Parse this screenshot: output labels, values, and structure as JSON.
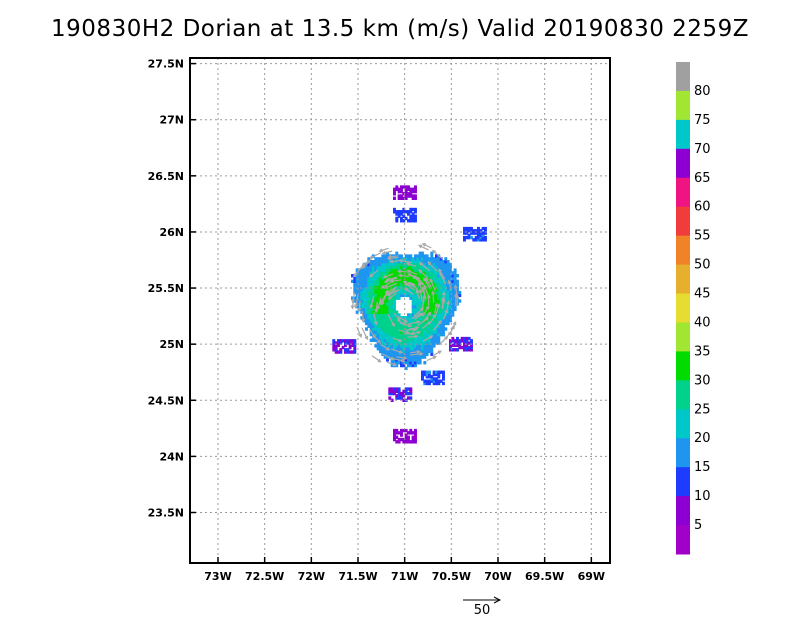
{
  "title": "190830H2 Dorian at 13.5 km (m/s) Valid 20190830 2259Z",
  "chart_data": {
    "type": "heatmap",
    "title": "190830H2 Dorian at 13.5 km (m/s) Valid 20190830 2259Z",
    "xlim": [
      -73.3,
      -68.8
    ],
    "ylim": [
      23.05,
      27.55
    ],
    "x_ticks": [
      {
        "value": -73.0,
        "label": "73W"
      },
      {
        "value": -72.5,
        "label": "72.5W"
      },
      {
        "value": -72.0,
        "label": "72W"
      },
      {
        "value": -71.5,
        "label": "71.5W"
      },
      {
        "value": -71.0,
        "label": "71W"
      },
      {
        "value": -70.5,
        "label": "70.5W"
      },
      {
        "value": -70.0,
        "label": "70W"
      },
      {
        "value": -69.5,
        "label": "69.5W"
      },
      {
        "value": -69.0,
        "label": "69W"
      }
    ],
    "y_ticks": [
      {
        "value": 27.5,
        "label": "27.5N"
      },
      {
        "value": 27.0,
        "label": "27N"
      },
      {
        "value": 26.5,
        "label": "26.5N"
      },
      {
        "value": 26.0,
        "label": "26N"
      },
      {
        "value": 25.5,
        "label": "25.5N"
      },
      {
        "value": 25.0,
        "label": "25N"
      },
      {
        "value": 24.5,
        "label": "24.5N"
      },
      {
        "value": 24.0,
        "label": "24N"
      },
      {
        "value": 23.5,
        "label": "23.5N"
      }
    ],
    "grid": true,
    "colorbar": {
      "labels": [
        "80",
        "75",
        "70",
        "65",
        "60",
        "55",
        "50",
        "45",
        "40",
        "35",
        "30",
        "25",
        "20",
        "15",
        "10",
        "5"
      ],
      "colors": [
        "#a0a0a0",
        "#a0e632",
        "#00c8c8",
        "#8c00d2",
        "#f01482",
        "#f03c3c",
        "#f08228",
        "#e6af2d",
        "#e6dc32",
        "#a0e632",
        "#00dc00",
        "#00d28c",
        "#00c8c8",
        "#1e96f0",
        "#1e3cff",
        "#8c00d2",
        "#a000c8"
      ]
    },
    "storm": {
      "center_lon": -71.0,
      "center_lat": 25.35,
      "eye_lon": -71.02,
      "eye_lat": 25.33,
      "max_wind": 32,
      "features": [
        {
          "type": "patch",
          "lon": -71.0,
          "lat": 26.35,
          "value": 8
        },
        {
          "type": "patch",
          "lon": -71.0,
          "lat": 26.15,
          "value": 12
        },
        {
          "type": "patch",
          "lon": -70.25,
          "lat": 25.98,
          "value": 14
        },
        {
          "type": "patch",
          "lon": -70.4,
          "lat": 25.0,
          "value": 10
        },
        {
          "type": "patch",
          "lon": -71.65,
          "lat": 24.98,
          "value": 10
        },
        {
          "type": "patch",
          "lon": -71.05,
          "lat": 24.55,
          "value": 10
        },
        {
          "type": "patch",
          "lon": -70.7,
          "lat": 24.7,
          "value": 14
        },
        {
          "type": "patch",
          "lon": -71.0,
          "lat": 24.18,
          "value": 6
        }
      ]
    },
    "reference_vector": {
      "label": "50",
      "value": 50
    }
  }
}
